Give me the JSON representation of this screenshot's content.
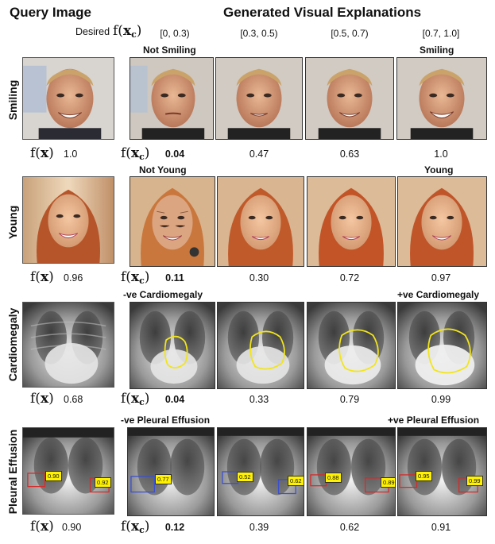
{
  "header": {
    "query_title": "Query Image",
    "gen_title": "Generated Visual Explanations",
    "desired_label": "Desired",
    "ranges": [
      "[0, 0.3)",
      "[0.3, 0.5)",
      "[0.5, 0.7)",
      "[0.7, 1.0]"
    ]
  },
  "rows": [
    {
      "label": "Smiling",
      "left_caption": "Not Smiling",
      "right_caption": "Smiling",
      "query_value": "1.0",
      "values": [
        "0.04",
        "0.47",
        "0.63",
        "1.0"
      ]
    },
    {
      "label": "Young",
      "left_caption": "Not Young",
      "right_caption": "Young",
      "query_value": "0.96",
      "values": [
        "0.11",
        "0.30",
        "0.72",
        "0.97"
      ]
    },
    {
      "label": "Cardiomegaly",
      "left_caption": "-ve Cardiomegaly",
      "right_caption": "+ve Cardiomegaly",
      "query_value": "0.68",
      "values": [
        "0.04",
        "0.33",
        "0.79",
        "0.99"
      ]
    },
    {
      "label": "Pleural Effusion",
      "left_caption": "-ve Pleural Effusion",
      "right_caption": "+ve Pleural Effusion",
      "query_value": "0.90",
      "values": [
        "0.12",
        "0.39",
        "0.62",
        "0.91"
      ],
      "box_scores": [
        [
          "0.90",
          "0.92"
        ],
        [
          "0.77",
          "0.62"
        ],
        [
          "0.52",
          "0.62"
        ],
        [
          "0.88",
          "0.89"
        ],
        [
          "0.95",
          "0.99"
        ]
      ]
    }
  ],
  "colors": {
    "contour": "#f2e51a",
    "box_red": "#d62a2a",
    "box_blue": "#3a4fd0",
    "score_bg": "#fff200"
  }
}
